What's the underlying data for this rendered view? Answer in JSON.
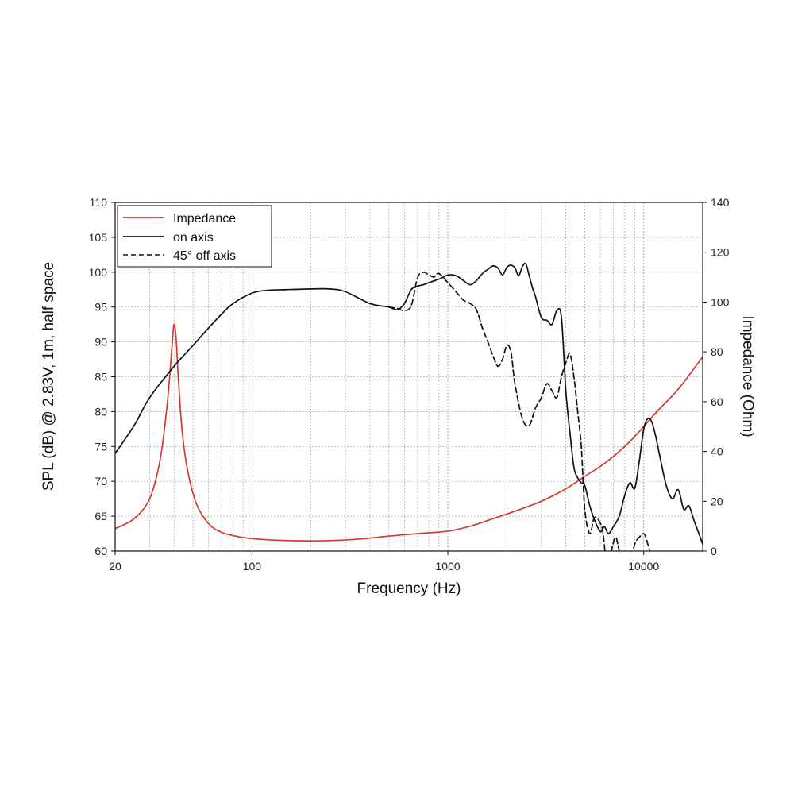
{
  "chart_data": {
    "type": "line",
    "title": "",
    "xlabel": "Frequency (Hz)",
    "ylabel": "SPL (dB) @ 2.83V, 1m, half space",
    "y2label": "Impedance (Ohm)",
    "x_scale": "log",
    "xlim": [
      20,
      20000
    ],
    "ylim": [
      60,
      110
    ],
    "y2lim": [
      0,
      140
    ],
    "grid": true,
    "legend_position": "top-left",
    "x_tick_labels": [
      "20",
      "100",
      "1000",
      "10000"
    ],
    "x_ticks": [
      20,
      100,
      1000,
      10000
    ],
    "y_ticks": [
      60,
      65,
      70,
      75,
      80,
      85,
      90,
      95,
      100,
      105,
      110
    ],
    "y_tick_labels": [
      "60",
      "65",
      "70",
      "75",
      "80",
      "85",
      "90",
      "95",
      "100",
      "105",
      "110"
    ],
    "y2_ticks": [
      0,
      20,
      40,
      60,
      80,
      100,
      120,
      140
    ],
    "y2_tick_labels": [
      "0",
      "20",
      "40",
      "60",
      "80",
      "100",
      "120",
      "140"
    ],
    "series": [
      {
        "name": "Impedance",
        "color": "#d23a2e",
        "axis": "y2",
        "style": "solid",
        "x": [
          20,
          25,
          30,
          34,
          37,
          39,
          40,
          41,
          42,
          44,
          47,
          52,
          60,
          70,
          85,
          100,
          130,
          180,
          250,
          350,
          500,
          700,
          1000,
          1300,
          1700,
          2200,
          3000,
          4000,
          5000,
          6000,
          7000,
          8000,
          9000,
          10000,
          12000,
          15000,
          20000
        ],
        "y": [
          9,
          13,
          21,
          37,
          60,
          82,
          91,
          85,
          70,
          48,
          32,
          19,
          11,
          7.5,
          5.8,
          5,
          4.4,
          4.1,
          4.2,
          4.8,
          6,
          7,
          8,
          10,
          13,
          16,
          20,
          25,
          30,
          34,
          38,
          42,
          46,
          50,
          57,
          65,
          78
        ]
      },
      {
        "name": "on axis",
        "color": "#111111",
        "axis": "y",
        "style": "solid",
        "x": [
          20,
          25,
          30,
          40,
          50,
          60,
          70,
          80,
          100,
          120,
          150,
          200,
          250,
          300,
          400,
          500,
          550,
          600,
          650,
          700,
          750,
          800,
          900,
          1000,
          1100,
          1200,
          1300,
          1400,
          1500,
          1600,
          1700,
          1800,
          1900,
          2000,
          2100,
          2200,
          2300,
          2400,
          2500,
          2600,
          2700,
          2800,
          3000,
          3200,
          3400,
          3600,
          3800,
          4000,
          4200,
          4400,
          4600,
          4800,
          5000,
          5300,
          5600,
          6000,
          6300,
          6600,
          7000,
          7500,
          8000,
          8500,
          9000,
          9500,
          10000,
          10500,
          11000,
          11500,
          12000,
          13000,
          14000,
          15000,
          16000,
          17000,
          18000,
          19000,
          20000
        ],
        "y": [
          74,
          78,
          82,
          86.5,
          89.5,
          92,
          94,
          95.5,
          97,
          97.4,
          97.5,
          97.6,
          97.6,
          97.2,
          95.5,
          95,
          94.6,
          95.5,
          97.5,
          98,
          98.2,
          98.5,
          99,
          99.6,
          99.5,
          98.8,
          98.2,
          98.8,
          99.8,
          100.4,
          100.9,
          100.6,
          99.6,
          100.7,
          101,
          100.6,
          99.5,
          100.8,
          101.2,
          99.5,
          97.8,
          96.5,
          93.5,
          93.1,
          92.5,
          94.5,
          93.5,
          83,
          77,
          72,
          70.5,
          69.8,
          69.4,
          66.5,
          64.5,
          62.8,
          63.5,
          62.5,
          63.5,
          65,
          68,
          69.8,
          69,
          73,
          77.5,
          79,
          78.5,
          76.5,
          74,
          69.5,
          67.5,
          68.8,
          66,
          66.5,
          64.5,
          62.7,
          61
        ]
      },
      {
        "name": "45° off axis",
        "color": "#111111",
        "axis": "y",
        "style": "dashed",
        "x": [
          500,
          550,
          600,
          650,
          700,
          750,
          800,
          850,
          900,
          1000,
          1100,
          1200,
          1300,
          1400,
          1500,
          1600,
          1700,
          1800,
          1900,
          2000,
          2100,
          2200,
          2400,
          2600,
          2800,
          3000,
          3200,
          3400,
          3600,
          3800,
          4000,
          4200,
          4400,
          4600,
          4800,
          5000,
          5300,
          5600,
          6000,
          6200,
          6400,
          6600,
          6900,
          7200,
          7500,
          8000,
          8500,
          9000,
          9500,
          10000,
          10300,
          10600,
          11000
        ],
        "y": [
          95,
          94.8,
          94.5,
          95.2,
          99.2,
          100,
          99.6,
          99.3,
          99.8,
          98.5,
          97.2,
          96,
          95.5,
          94.6,
          92,
          90,
          88,
          86.5,
          87.5,
          89.5,
          88.5,
          84,
          79,
          78,
          80.5,
          82,
          84,
          83,
          82,
          85,
          87,
          88.3,
          85,
          80,
          75,
          66,
          62.5,
          64.8,
          64,
          62.5,
          59,
          58,
          60.5,
          62,
          60,
          58,
          58,
          61,
          62,
          62.5,
          61.8,
          60.5,
          59
        ]
      }
    ]
  }
}
